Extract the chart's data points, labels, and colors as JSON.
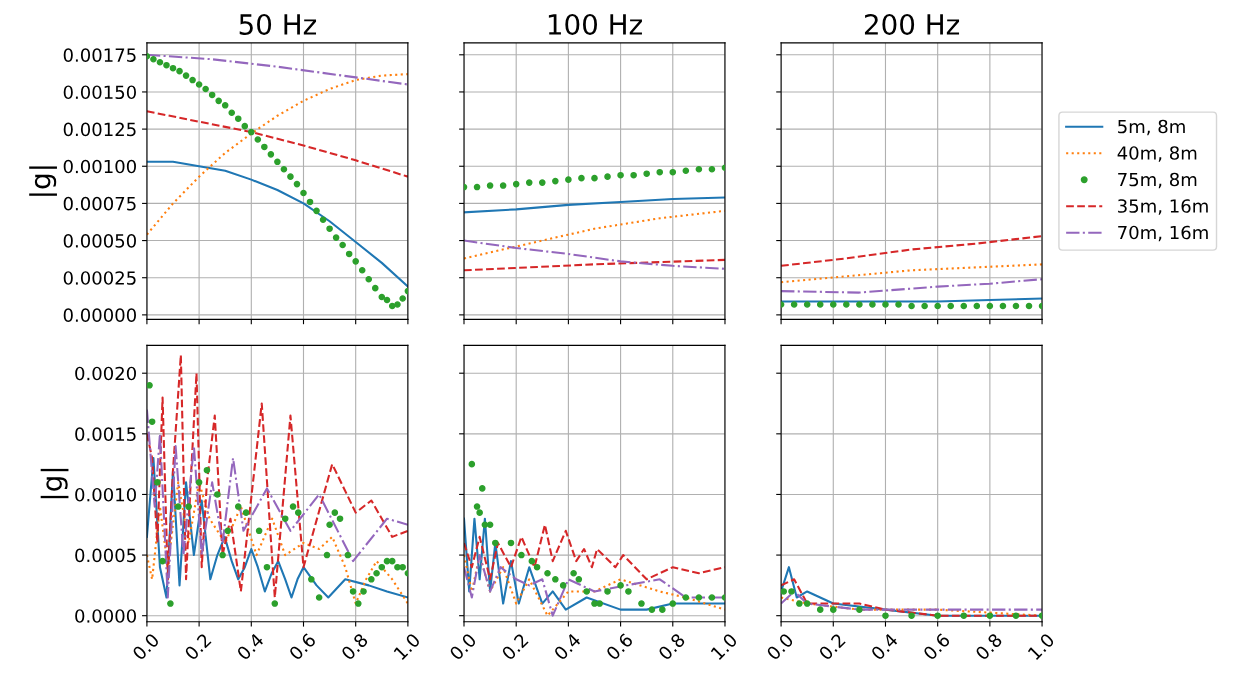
{
  "chart_data": [
    {
      "type": "line",
      "title": "50 Hz",
      "ylabel": "|g|",
      "xlim": [
        0,
        1
      ],
      "xticks": [
        0,
        0.2,
        0.4,
        0.6,
        0.8,
        1
      ],
      "ylim": [
        -3e-05,
        0.00183
      ],
      "yticks": [
        {
          "value": 0,
          "label": "0.00000"
        },
        0.00025,
        {
          "value": 0.0005,
          "label": "0.00050"
        },
        0.00075,
        {
          "value": 0.001,
          "label": "0.00100"
        },
        0.00125,
        {
          "value": 0.0015,
          "label": "0.00150"
        },
        0.00175
      ],
      "grid": true,
      "tick_labels": "y",
      "series": [
        {
          "color": "#1f77b4",
          "line_style": "solid",
          "x": [
            0,
            0.1,
            0.2,
            0.3,
            0.4,
            0.5,
            0.6,
            0.7,
            0.8,
            0.9,
            1.0
          ],
          "values": [
            0.00103,
            0.00103,
            0.001,
            0.00097,
            0.00091,
            0.00084,
            0.00075,
            0.00063,
            0.00049,
            0.00035,
            0.00019
          ]
        },
        {
          "color": "#ff7f0e",
          "line_style": "dotted",
          "x": [
            0,
            0.1,
            0.2,
            0.3,
            0.4,
            0.5,
            0.6,
            0.7,
            0.8,
            0.9,
            1.0
          ],
          "values": [
            0.00054,
            0.00075,
            0.00093,
            0.00109,
            0.00122,
            0.00134,
            0.00144,
            0.00152,
            0.00158,
            0.00161,
            0.00162
          ]
        },
        {
          "type": "scatter",
          "marker": "circle",
          "color": "#2ca02c",
          "x": [
            0,
            0.025,
            0.05,
            0.075,
            0.1,
            0.125,
            0.15,
            0.175,
            0.2,
            0.225,
            0.25,
            0.275,
            0.3,
            0.325,
            0.35,
            0.375,
            0.4,
            0.425,
            0.45,
            0.475,
            0.5,
            0.525,
            0.55,
            0.575,
            0.6,
            0.625,
            0.65,
            0.675,
            0.7,
            0.725,
            0.75,
            0.775,
            0.8,
            0.825,
            0.85,
            0.875,
            0.9,
            0.92,
            0.94,
            0.96,
            0.98,
            1.0
          ],
          "values": [
            0.00174,
            0.00172,
            0.0017,
            0.00168,
            0.00166,
            0.00164,
            0.00161,
            0.00158,
            0.00155,
            0.00152,
            0.00148,
            0.00144,
            0.00141,
            0.00136,
            0.00132,
            0.00127,
            0.00123,
            0.00118,
            0.00113,
            0.00108,
            0.00103,
            0.00098,
            0.00093,
            0.00088,
            0.00082,
            0.00076,
            0.0007,
            0.00064,
            0.00058,
            0.00052,
            0.00047,
            0.00041,
            0.00036,
            0.0003,
            0.00024,
            0.00018,
            0.00012,
            0.0001,
            6e-05,
            7e-05,
            0.00011,
            0.00016
          ]
        },
        {
          "color": "#d62728",
          "line_style": "dashed",
          "x": [
            0,
            0.2,
            0.4,
            0.6,
            0.8,
            1.0
          ],
          "values": [
            0.00137,
            0.0013,
            0.00123,
            0.00114,
            0.00104,
            0.00093
          ]
        },
        {
          "color": "#9467bd",
          "line_style": "dashdot",
          "x": [
            0,
            0.25,
            0.5,
            0.75,
            1.0
          ],
          "values": [
            0.00175,
            0.00172,
            0.00167,
            0.00161,
            0.00155
          ]
        }
      ]
    },
    {
      "type": "line",
      "title": "100 Hz",
      "xlim": [
        0,
        1
      ],
      "xticks": [
        0,
        0.2,
        0.4,
        0.6,
        0.8,
        1
      ],
      "ylim": [
        -3e-05,
        0.00183
      ],
      "yticks": [
        0,
        0.00025,
        0.0005,
        0.00075,
        0.001,
        0.00125,
        0.0015,
        0.00175
      ],
      "grid": true,
      "tick_labels": false,
      "series": [
        {
          "color": "#1f77b4",
          "line_style": "solid",
          "x": [
            0,
            0.2,
            0.4,
            0.6,
            0.8,
            1.0
          ],
          "values": [
            0.00069,
            0.00071,
            0.00074,
            0.00076,
            0.00078,
            0.00079
          ]
        },
        {
          "color": "#ff7f0e",
          "line_style": "dotted",
          "x": [
            0,
            0.25,
            0.5,
            0.75,
            1.0
          ],
          "values": [
            0.00038,
            0.00048,
            0.00058,
            0.00065,
            0.0007
          ]
        },
        {
          "type": "scatter",
          "marker": "circle",
          "color": "#2ca02c",
          "x": [
            0,
            0.05,
            0.1,
            0.15,
            0.2,
            0.25,
            0.3,
            0.35,
            0.4,
            0.45,
            0.5,
            0.55,
            0.6,
            0.65,
            0.7,
            0.75,
            0.8,
            0.85,
            0.9,
            0.95,
            1.0
          ],
          "values": [
            0.00086,
            0.00086,
            0.00087,
            0.00087,
            0.00088,
            0.00089,
            0.00089,
            0.0009,
            0.00091,
            0.00092,
            0.00092,
            0.00093,
            0.00094,
            0.00094,
            0.00095,
            0.00096,
            0.00096,
            0.00097,
            0.00098,
            0.00098,
            0.00099
          ]
        },
        {
          "color": "#d62728",
          "line_style": "dashed",
          "x": [
            0,
            0.5,
            1.0
          ],
          "values": [
            0.0003,
            0.00034,
            0.00037
          ]
        },
        {
          "color": "#9467bd",
          "line_style": "dashdot",
          "x": [
            0,
            0.2,
            0.4,
            0.6,
            0.8,
            1.0
          ],
          "values": [
            0.0005,
            0.00045,
            0.00041,
            0.00036,
            0.00033,
            0.00031
          ]
        }
      ]
    },
    {
      "type": "line",
      "title": "200 Hz",
      "xlim": [
        0,
        1
      ],
      "xticks": [
        0,
        0.2,
        0.4,
        0.6,
        0.8,
        1
      ],
      "ylim": [
        -3e-05,
        0.00183
      ],
      "yticks": [
        0,
        0.00025,
        0.0005,
        0.00075,
        0.001,
        0.00125,
        0.0015,
        0.00175
      ],
      "grid": true,
      "tick_labels": false,
      "legend": "right",
      "series": [
        {
          "name": "5m, 8m",
          "color": "#1f77b4",
          "line_style": "solid",
          "x": [
            0,
            0.3,
            0.6,
            0.8,
            1.0
          ],
          "values": [
            9e-05,
            9e-05,
            9e-05,
            0.0001,
            0.00011
          ]
        },
        {
          "name": "40m, 8m",
          "color": "#ff7f0e",
          "line_style": "dotted",
          "x": [
            0,
            0.25,
            0.5,
            0.75,
            1.0
          ],
          "values": [
            0.00022,
            0.00026,
            0.0003,
            0.00032,
            0.00034
          ]
        },
        {
          "name": "75m, 8m",
          "type": "scatter",
          "marker": "circle",
          "color": "#2ca02c",
          "x": [
            0,
            0.05,
            0.1,
            0.15,
            0.2,
            0.25,
            0.3,
            0.35,
            0.4,
            0.45,
            0.5,
            0.55,
            0.6,
            0.65,
            0.7,
            0.75,
            0.8,
            0.85,
            0.9,
            0.95,
            1.0
          ],
          "values": [
            7e-05,
            7e-05,
            7e-05,
            7e-05,
            7e-05,
            7e-05,
            7e-05,
            7e-05,
            7e-05,
            7e-05,
            6e-05,
            6e-05,
            6e-05,
            6e-05,
            6e-05,
            6e-05,
            6e-05,
            6e-05,
            6e-05,
            6e-05,
            6e-05
          ]
        },
        {
          "name": "35m, 16m",
          "color": "#d62728",
          "line_style": "dashed",
          "x": [
            0,
            0.25,
            0.5,
            0.75,
            1.0
          ],
          "values": [
            0.00033,
            0.00038,
            0.00044,
            0.00048,
            0.00053
          ]
        },
        {
          "name": "70m, 16m",
          "color": "#9467bd",
          "line_style": "dashdot",
          "x": [
            0,
            0.3,
            0.6,
            0.8,
            1.0
          ],
          "values": [
            0.00016,
            0.00015,
            0.00019,
            0.00021,
            0.00024
          ]
        }
      ]
    },
    {
      "type": "line",
      "ylabel": "|g|",
      "xlim": [
        0,
        1
      ],
      "xticks": [
        {
          "value": 0,
          "label": "0.0"
        },
        {
          "value": 0.2,
          "label": "0.2"
        },
        {
          "value": 0.4,
          "label": "0.4"
        },
        {
          "value": 0.6,
          "label": "0.6"
        },
        {
          "value": 0.8,
          "label": "0.8"
        },
        {
          "value": 1,
          "label": "1.0"
        }
      ],
      "ylim": [
        -5e-05,
        0.00223
      ],
      "yticks": [
        {
          "value": 0,
          "label": "0.0000"
        },
        0.0005,
        {
          "value": 0.001,
          "label": "0.0010"
        },
        0.0015,
        {
          "value": 0.002,
          "label": "0.0020"
        }
      ],
      "grid": true,
      "series": [
        {
          "color": "#1f77b4",
          "line_style": "solid",
          "x": [
            0,
            0.025,
            0.05,
            0.075,
            0.1,
            0.125,
            0.15,
            0.18,
            0.21,
            0.243,
            0.27,
            0.298,
            0.325,
            0.35,
            0.375,
            0.4,
            0.425,
            0.452,
            0.478,
            0.503,
            0.53,
            0.554,
            0.577,
            0.6,
            0.65,
            0.695,
            0.76,
            0.85,
            0.92,
            1.0
          ],
          "values": [
            0.00065,
            0.0013,
            0.0004,
            0.00015,
            0.0012,
            0.00025,
            0.0011,
            0.0005,
            0.00095,
            0.0003,
            0.0005,
            0.00065,
            0.00045,
            0.0003,
            0.0004,
            0.00055,
            0.0004,
            0.0002,
            0.00035,
            0.00045,
            0.0003,
            0.00015,
            0.0003,
            0.0004,
            0.00025,
            0.00015,
            0.0003,
            0.00025,
            0.0002,
            0.00015
          ]
        },
        {
          "color": "#ff7f0e",
          "line_style": "dotted",
          "x": [
            0,
            0.02,
            0.05,
            0.08,
            0.12,
            0.16,
            0.2,
            0.24,
            0.3,
            0.36,
            0.42,
            0.48,
            0.53,
            0.6,
            0.66,
            0.71,
            0.76,
            0.8,
            0.84,
            0.88,
            0.94,
            1.0
          ],
          "values": [
            0.0005,
            0.0003,
            0.0009,
            0.0004,
            0.0011,
            0.0006,
            0.0011,
            0.0008,
            0.0006,
            0.0009,
            0.0005,
            0.0008,
            0.0005,
            0.0006,
            0.00055,
            0.00065,
            0.0004,
            0.0001,
            0.0003,
            0.00045,
            0.0003,
            0.0001
          ]
        },
        {
          "type": "scatter",
          "marker": "circle",
          "color": "#2ca02c",
          "x": [
            0.01,
            0.02,
            0.04,
            0.06,
            0.09,
            0.12,
            0.16,
            0.2,
            0.23,
            0.27,
            0.29,
            0.31,
            0.35,
            0.38,
            0.43,
            0.46,
            0.49,
            0.53,
            0.56,
            0.58,
            0.63,
            0.66,
            0.69,
            0.7,
            0.72,
            0.74,
            0.77,
            0.79,
            0.81,
            0.83,
            0.86,
            0.88,
            0.9,
            0.92,
            0.94,
            0.96,
            0.98,
            1.0
          ],
          "values": [
            0.0019,
            0.0016,
            0.0011,
            0.00045,
            0.0001,
            0.0009,
            0.0009,
            0.0011,
            0.0012,
            0.001,
            0.0005,
            0.0007,
            0.0009,
            0.00085,
            0.0007,
            0.0004,
            0.0001,
            0.0008,
            0.0009,
            0.00085,
            0.0003,
            0.00015,
            0.0005,
            0.00075,
            0.00085,
            0.0008,
            0.0005,
            0.0002,
            0.0001,
            0.0002,
            0.0003,
            0.00035,
            0.0004,
            0.00045,
            0.00045,
            0.0004,
            0.0004,
            0.00035
          ]
        },
        {
          "color": "#d62728",
          "line_style": "dashed",
          "x": [
            0,
            0.02,
            0.04,
            0.06,
            0.08,
            0.1,
            0.13,
            0.15,
            0.17,
            0.19,
            0.21,
            0.23,
            0.26,
            0.29,
            0.32,
            0.36,
            0.44,
            0.49,
            0.55,
            0.6,
            0.71,
            0.8,
            0.86,
            0.94,
            1.0
          ],
          "values": [
            0.0015,
            0.0013,
            0.0006,
            0.0018,
            0.0003,
            0.0012,
            0.00215,
            0.0003,
            0.0012,
            0.002,
            0.0004,
            0.0011,
            0.00165,
            0.0005,
            0.0008,
            0.0002,
            0.00175,
            0.00015,
            0.00165,
            0.0004,
            0.00125,
            0.00085,
            0.00095,
            0.00065,
            0.0007
          ]
        },
        {
          "color": "#9467bd",
          "line_style": "dashdot",
          "x": [
            0,
            0.03,
            0.05,
            0.08,
            0.11,
            0.14,
            0.18,
            0.21,
            0.25,
            0.29,
            0.33,
            0.37,
            0.46,
            0.55,
            0.66,
            0.79,
            0.92,
            1.0
          ],
          "values": [
            0.0017,
            0.0009,
            0.0015,
            0.00015,
            0.0014,
            0.0005,
            0.0014,
            0.0005,
            0.0011,
            0.0006,
            0.0013,
            0.0007,
            0.00105,
            0.0007,
            0.001,
            0.00045,
            0.0008,
            0.00075
          ]
        }
      ]
    },
    {
      "type": "line",
      "xlim": [
        0,
        1
      ],
      "xticks": [
        {
          "value": 0,
          "label": "0.0"
        },
        {
          "value": 0.2,
          "label": "0.2"
        },
        {
          "value": 0.4,
          "label": "0.4"
        },
        {
          "value": 0.6,
          "label": "0.6"
        },
        {
          "value": 0.8,
          "label": "0.8"
        },
        {
          "value": 1,
          "label": "1.0"
        }
      ],
      "ylim": [
        -5e-05,
        0.00223
      ],
      "yticks": [
        0,
        0.0005,
        0.001,
        0.0015,
        0.002
      ],
      "grid": true,
      "tick_labels": "x",
      "series": [
        {
          "color": "#1f77b4",
          "line_style": "solid",
          "x": [
            0,
            0.02,
            0.04,
            0.06,
            0.08,
            0.1,
            0.12,
            0.15,
            0.18,
            0.21,
            0.25,
            0.3,
            0.34,
            0.39,
            0.47,
            0.6,
            0.7,
            0.8,
            1.0
          ],
          "values": [
            0.0008,
            0.0002,
            0.0008,
            0.0003,
            0.0008,
            0.0002,
            0.0006,
            0.0001,
            0.00045,
            0.0001,
            0.0004,
            0.0001,
            0.0002,
            5e-05,
            0.00015,
            5e-05,
            5e-05,
            0.0001,
            0.0001
          ]
        },
        {
          "color": "#ff7f0e",
          "line_style": "dotted",
          "x": [
            0,
            0.03,
            0.06,
            0.1,
            0.15,
            0.2,
            0.25,
            0.32,
            0.4,
            0.5,
            0.6,
            0.75,
            0.85,
            1.0
          ],
          "values": [
            0.0005,
            0.0002,
            0.0005,
            0.0002,
            0.0004,
            0.0001,
            0.0003,
            0,
            0.0002,
            0.0002,
            0.0003,
            0.0002,
            0.00015,
            5e-05
          ]
        },
        {
          "type": "scatter",
          "marker": "circle",
          "color": "#2ca02c",
          "x": [
            0.03,
            0.05,
            0.06,
            0.07,
            0.08,
            0.1,
            0.12,
            0.18,
            0.22,
            0.26,
            0.28,
            0.32,
            0.35,
            0.38,
            0.42,
            0.44,
            0.47,
            0.5,
            0.52,
            0.55,
            0.6,
            0.63,
            0.68,
            0.72,
            0.76,
            0.8,
            0.85,
            0.9,
            0.95,
            1.0
          ],
          "values": [
            0.00125,
            0.0009,
            0.00085,
            0.00105,
            0.00075,
            0.00075,
            0.0006,
            0.0006,
            0.0005,
            0.00045,
            0.0004,
            0.00035,
            0.0003,
            0.00025,
            0.00035,
            0.0003,
            0.0002,
            0.0001,
            0.0001,
            0.0002,
            0.00025,
            0.0002,
            0.0001,
            5e-05,
            5e-05,
            0.0001,
            0.00015,
            0.00015,
            0.00015,
            0.00015
          ]
        },
        {
          "color": "#d62728",
          "line_style": "dashed",
          "x": [
            0,
            0.03,
            0.06,
            0.1,
            0.13,
            0.18,
            0.22,
            0.27,
            0.31,
            0.34,
            0.39,
            0.43,
            0.46,
            0.49,
            0.51,
            0.58,
            0.61,
            0.7,
            0.8,
            0.9,
            1.0
          ],
          "values": [
            0.0006,
            0.0004,
            0.00065,
            0.0003,
            0.0006,
            0.0004,
            0.00065,
            0.0004,
            0.00075,
            0.00045,
            0.0007,
            0.00045,
            0.00055,
            0.0004,
            0.00055,
            0.0004,
            0.0005,
            0.0003,
            0.0004,
            0.00035,
            0.0004
          ]
        },
        {
          "color": "#9467bd",
          "line_style": "dashdot",
          "x": [
            0,
            0.03,
            0.06,
            0.1,
            0.14,
            0.2,
            0.25,
            0.3,
            0.34,
            0.4,
            0.5,
            0.62,
            0.75,
            0.85,
            1.0
          ],
          "values": [
            0.0004,
            0.00015,
            0.0005,
            0.0002,
            0.0004,
            0.0003,
            0.00025,
            0.0003,
            0,
            0.0003,
            0.0002,
            0.00025,
            0.0003,
            0.00015,
            0.00015
          ]
        }
      ]
    },
    {
      "type": "line",
      "xlim": [
        0,
        1
      ],
      "xticks": [
        {
          "value": 0,
          "label": "0.0"
        },
        {
          "value": 0.2,
          "label": "0.2"
        },
        {
          "value": 0.4,
          "label": "0.4"
        },
        {
          "value": 0.6,
          "label": "0.6"
        },
        {
          "value": 0.8,
          "label": "0.8"
        },
        {
          "value": 1,
          "label": "1.0"
        }
      ],
      "ylim": [
        -5e-05,
        0.00223
      ],
      "yticks": [
        0,
        0.0005,
        0.001,
        0.0015,
        0.002
      ],
      "grid": true,
      "tick_labels": "x",
      "series": [
        {
          "color": "#1f77b4",
          "line_style": "solid",
          "x": [
            0,
            0.03,
            0.06,
            0.1,
            0.2,
            0.4,
            0.6,
            1.0
          ],
          "values": [
            0.0002,
            0.0004,
            0.00015,
            0.0002,
            0.0001,
            5e-05,
            0,
            0
          ]
        },
        {
          "color": "#ff7f0e",
          "line_style": "dotted",
          "x": [
            0,
            0.1,
            0.3,
            0.6,
            1.0
          ],
          "values": [
            0.00015,
            0.0001,
            5e-05,
            5e-05,
            0
          ]
        },
        {
          "type": "scatter",
          "marker": "circle",
          "color": "#2ca02c",
          "x": [
            0.01,
            0.04,
            0.07,
            0.1,
            0.15,
            0.2,
            0.3,
            0.4,
            0.5,
            0.6,
            0.7,
            0.8,
            0.9,
            1.0
          ],
          "values": [
            0.0002,
            0.0002,
            0.0001,
            0.0001,
            5e-05,
            5e-05,
            5e-05,
            0,
            0,
            0,
            0,
            0,
            0,
            0
          ]
        },
        {
          "color": "#d62728",
          "line_style": "dashed",
          "x": [
            0,
            0.05,
            0.1,
            0.2,
            0.3,
            0.4,
            0.6,
            1.0
          ],
          "values": [
            0.00025,
            0.0003,
            0.0001,
            0.0001,
            0.0001,
            5e-05,
            0,
            0
          ]
        },
        {
          "color": "#9467bd",
          "line_style": "dashdot",
          "x": [
            0,
            0.05,
            0.1,
            0.3,
            0.6,
            0.8,
            1.0
          ],
          "values": [
            0.0001,
            0.0002,
            0.0001,
            5e-05,
            5e-05,
            5e-05,
            5e-05
          ]
        }
      ]
    }
  ]
}
